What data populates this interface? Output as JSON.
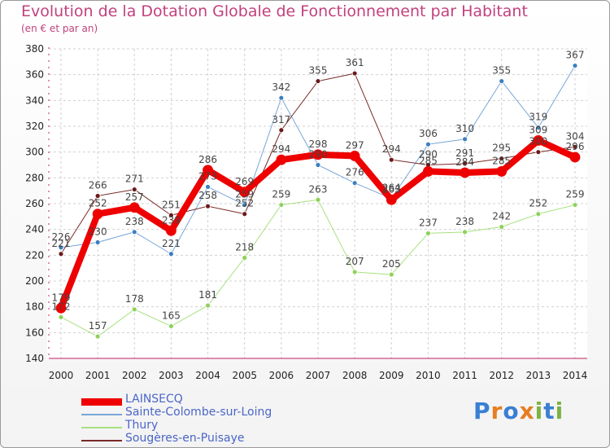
{
  "header": {
    "title": "Evolution de la Dotation Globale de Fonctionnement par Habitant",
    "subtitle": "(en € et par an)"
  },
  "brand": {
    "name": "Proxiti",
    "letters": [
      {
        "char": "P",
        "color": "#3a7fd4"
      },
      {
        "char": "r",
        "color": "#e67e22"
      },
      {
        "char": "o",
        "color": "#3a7fd4"
      },
      {
        "char": "x",
        "color": "#e67e22"
      },
      {
        "char": "i",
        "color": "#7cb342"
      },
      {
        "char": "t",
        "color": "#3a7fd4"
      },
      {
        "char": "i",
        "color": "#7cb342"
      }
    ]
  },
  "chart_data": {
    "type": "line",
    "title": "Evolution de la Dotation Globale de Fonctionnement par Habitant",
    "subtitle": "(en € et par an)",
    "xlabel": "",
    "ylabel": "",
    "x": [
      "2000",
      "2001",
      "2002",
      "2003",
      "2004",
      "2005",
      "2006",
      "2007",
      "2008",
      "2009",
      "2010",
      "2011",
      "2012",
      "2013",
      "2014"
    ],
    "ylim": [
      140,
      380
    ],
    "yticks": [
      140,
      160,
      180,
      200,
      220,
      240,
      260,
      280,
      300,
      320,
      340,
      360,
      380
    ],
    "grid": true,
    "legend_position": "bottom-left",
    "series": [
      {
        "name": "Sainte-Colombe-sur-Loing",
        "color": "#7aa6d6",
        "marker": "#3a7fc2",
        "width": 1,
        "values": [
          226,
          230,
          238,
          221,
          273,
          259,
          342,
          290,
          276,
          264,
          306,
          310,
          355,
          319,
          367
        ],
        "labels": [
          "226",
          "230",
          "238",
          "221",
          "273",
          "259",
          "342",
          "290",
          "276",
          "264",
          "306",
          "310",
          "355",
          "319",
          "367"
        ]
      },
      {
        "name": "Thury",
        "color": "#a8e080",
        "marker": "#8fd15a",
        "width": 1,
        "values": [
          172,
          157,
          178,
          165,
          181,
          218,
          259,
          263,
          207,
          205,
          237,
          238,
          242,
          252,
          259
        ],
        "labels": [
          "172",
          "157",
          "178",
          "165",
          "181",
          "218",
          "259",
          "263",
          "207",
          "205",
          "237",
          "238",
          "242",
          "252",
          "259"
        ]
      },
      {
        "name": "Sougères-en-Puisaye",
        "color": "#7a2a2a",
        "marker": "#6a1a1a",
        "width": 1,
        "values": [
          221,
          266,
          271,
          251,
          258,
          252,
          317,
          355,
          361,
          294,
          290,
          291,
          295,
          300,
          304
        ],
        "labels": [
          "221",
          "266",
          "271",
          "251",
          "258",
          "252",
          "317",
          "355",
          "361",
          "294",
          "290",
          "291",
          "295",
          "300",
          "304"
        ]
      },
      {
        "name": "LAINSECQ",
        "color": "#ee0000",
        "marker": "#ee0000",
        "width": 8,
        "values": [
          179,
          252,
          257,
          239,
          286,
          269,
          294,
          298,
          297,
          263,
          285,
          284,
          285,
          309,
          296
        ],
        "labels": [
          "179",
          "252",
          "257",
          "239",
          "286",
          "269",
          "294",
          "298",
          "297",
          "263",
          "285",
          "284",
          "285",
          "309",
          "296"
        ]
      }
    ],
    "legend_order": [
      "LAINSECQ",
      "Sainte-Colombe-sur-Loing",
      "Thury",
      "Sougères-en-Puisaye"
    ]
  }
}
